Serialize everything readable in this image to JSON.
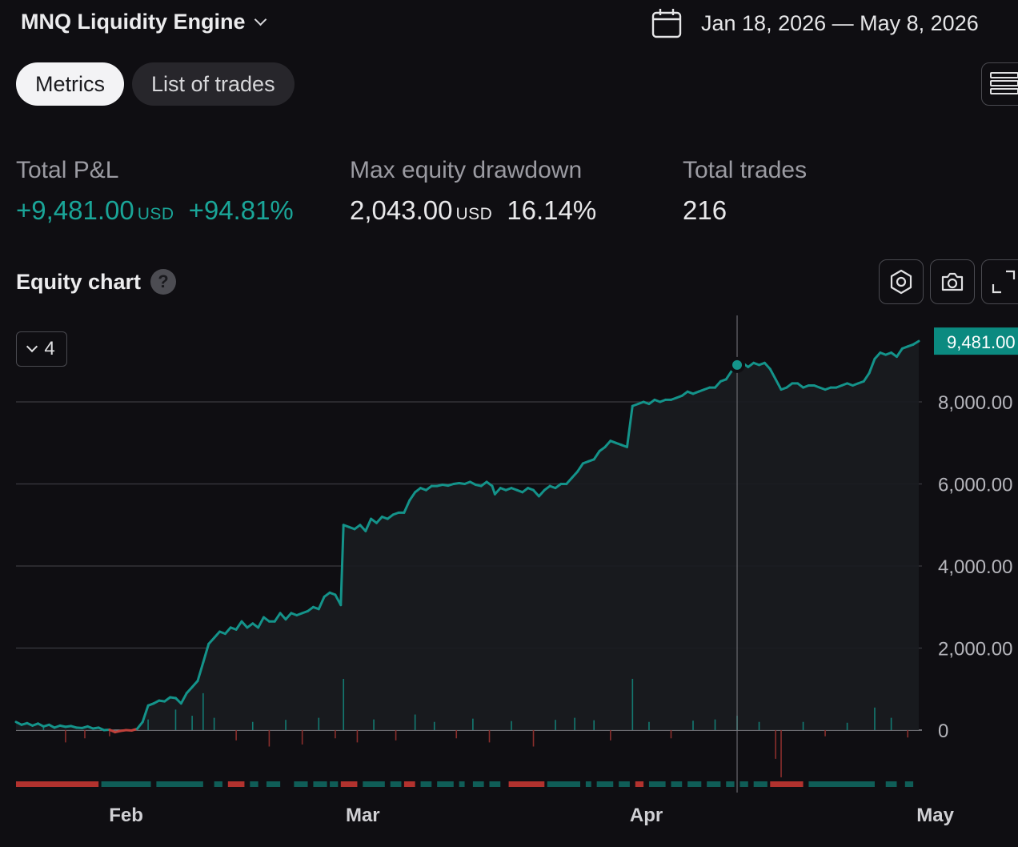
{
  "header": {
    "strategy_name": "MNQ Liquidity Engine",
    "date_range": "Jan 18, 2026 — May 8, 2026"
  },
  "tabs": [
    {
      "label": "Metrics",
      "active": true
    },
    {
      "label": "List of trades",
      "active": false
    }
  ],
  "metrics": {
    "total_pnl": {
      "label": "Total P&L",
      "value": "+9,481.00",
      "unit": "USD",
      "percent": "+94.81%"
    },
    "max_drawdown": {
      "label": "Max equity drawdown",
      "value": "2,043.00",
      "unit": "USD",
      "percent": "16.14%"
    },
    "total_trades": {
      "label": "Total trades",
      "value": "216"
    }
  },
  "equity_section": {
    "title": "Equity chart",
    "help_glyph": "?",
    "collapse_count": "4"
  },
  "colors": {
    "background": "#0f0e12",
    "equity_line": "#14938a",
    "positive": "#1aa598",
    "negative": "#c0413b",
    "label_bg": "#0b8a80"
  },
  "chart_data": {
    "type": "line",
    "x_axis": {
      "ticks": [
        "Feb",
        "Mar",
        "Apr",
        "May"
      ]
    },
    "y_axis": {
      "ticks": [
        "0",
        "2,000.00",
        "4,000.00",
        "6,000.00",
        "8,000.00"
      ],
      "range": [
        -1200,
        10000
      ],
      "side": "right"
    },
    "last_value_label": "9,481.00",
    "grid": true,
    "series": [
      {
        "values": [
          [
            0,
            200
          ],
          [
            2,
            130
          ],
          [
            4,
            170
          ],
          [
            6,
            110
          ],
          [
            8,
            160
          ],
          [
            10,
            90
          ],
          [
            12,
            130
          ],
          [
            14,
            60
          ],
          [
            16,
            110
          ],
          [
            18,
            80
          ],
          [
            20,
            100
          ],
          [
            22,
            60
          ],
          [
            24,
            50
          ],
          [
            26,
            90
          ],
          [
            28,
            40
          ],
          [
            30,
            60
          ],
          [
            32,
            0
          ],
          [
            34,
            10
          ],
          [
            36,
            -50
          ],
          [
            38,
            -20
          ],
          [
            40,
            0
          ],
          [
            42,
            -10
          ],
          [
            44,
            30
          ],
          [
            46,
            200
          ],
          [
            48,
            600
          ],
          [
            50,
            650
          ],
          [
            52,
            720
          ],
          [
            54,
            700
          ],
          [
            56,
            800
          ],
          [
            58,
            780
          ],
          [
            60,
            650
          ],
          [
            62,
            900
          ],
          [
            64,
            1050
          ],
          [
            66,
            1200
          ],
          [
            68,
            1650
          ],
          [
            70,
            2100
          ],
          [
            72,
            2250
          ],
          [
            74,
            2400
          ],
          [
            76,
            2350
          ],
          [
            78,
            2500
          ],
          [
            80,
            2450
          ],
          [
            82,
            2650
          ],
          [
            84,
            2500
          ],
          [
            86,
            2600
          ],
          [
            88,
            2500
          ],
          [
            90,
            2750
          ],
          [
            92,
            2650
          ],
          [
            94,
            2650
          ],
          [
            96,
            2850
          ],
          [
            98,
            2700
          ],
          [
            100,
            2850
          ],
          [
            102,
            2800
          ],
          [
            104,
            2850
          ],
          [
            106,
            2900
          ],
          [
            108,
            3000
          ],
          [
            110,
            2950
          ],
          [
            112,
            3250
          ],
          [
            114,
            3350
          ],
          [
            116,
            3300
          ],
          [
            118,
            3050
          ],
          [
            119,
            5000
          ],
          [
            121,
            4950
          ],
          [
            123,
            4900
          ],
          [
            125,
            5000
          ],
          [
            127,
            4850
          ],
          [
            129,
            5150
          ],
          [
            131,
            5050
          ],
          [
            133,
            5200
          ],
          [
            135,
            5150
          ],
          [
            137,
            5250
          ],
          [
            139,
            5300
          ],
          [
            141,
            5300
          ],
          [
            143,
            5600
          ],
          [
            145,
            5800
          ],
          [
            147,
            5900
          ],
          [
            149,
            5850
          ],
          [
            151,
            5950
          ],
          [
            153,
            5950
          ],
          [
            155,
            5980
          ],
          [
            157,
            5960
          ],
          [
            159,
            6000
          ],
          [
            161,
            6020
          ],
          [
            163,
            6000
          ],
          [
            165,
            6050
          ],
          [
            167,
            5980
          ],
          [
            169,
            5950
          ],
          [
            171,
            6050
          ],
          [
            173,
            5950
          ],
          [
            174,
            5750
          ],
          [
            176,
            5900
          ],
          [
            178,
            5850
          ],
          [
            180,
            5900
          ],
          [
            182,
            5850
          ],
          [
            184,
            5800
          ],
          [
            186,
            5900
          ],
          [
            188,
            5850
          ],
          [
            190,
            5700
          ],
          [
            192,
            5850
          ],
          [
            194,
            5950
          ],
          [
            196,
            5900
          ],
          [
            198,
            6000
          ],
          [
            200,
            6000
          ],
          [
            202,
            6150
          ],
          [
            204,
            6300
          ],
          [
            206,
            6500
          ],
          [
            208,
            6550
          ],
          [
            210,
            6600
          ],
          [
            212,
            6800
          ],
          [
            214,
            6900
          ],
          [
            216,
            7050
          ],
          [
            218,
            7000
          ],
          [
            220,
            6950
          ],
          [
            222,
            6900
          ],
          [
            224,
            7900
          ],
          [
            226,
            7950
          ],
          [
            228,
            8000
          ],
          [
            230,
            7950
          ],
          [
            232,
            8050
          ],
          [
            234,
            8000
          ],
          [
            236,
            8050
          ],
          [
            238,
            8050
          ],
          [
            240,
            8100
          ],
          [
            242,
            8150
          ],
          [
            244,
            8250
          ],
          [
            246,
            8200
          ],
          [
            248,
            8250
          ],
          [
            250,
            8300
          ],
          [
            252,
            8350
          ],
          [
            254,
            8350
          ],
          [
            256,
            8500
          ],
          [
            258,
            8550
          ],
          [
            260,
            8750
          ],
          [
            262,
            8900
          ],
          [
            264,
            8950
          ],
          [
            266,
            8850
          ],
          [
            268,
            8950
          ],
          [
            270,
            8900
          ],
          [
            272,
            8950
          ],
          [
            274,
            8800
          ],
          [
            276,
            8550
          ],
          [
            278,
            8300
          ],
          [
            280,
            8350
          ],
          [
            282,
            8450
          ],
          [
            284,
            8450
          ],
          [
            286,
            8350
          ],
          [
            288,
            8400
          ],
          [
            290,
            8400
          ],
          [
            292,
            8350
          ],
          [
            294,
            8300
          ],
          [
            296,
            8350
          ],
          [
            298,
            8350
          ],
          [
            300,
            8400
          ],
          [
            302,
            8450
          ],
          [
            304,
            8400
          ],
          [
            306,
            8450
          ],
          [
            308,
            8500
          ],
          [
            310,
            8700
          ],
          [
            312,
            9050
          ],
          [
            314,
            9200
          ],
          [
            316,
            9150
          ],
          [
            318,
            9200
          ],
          [
            320,
            9100
          ],
          [
            322,
            9300
          ],
          [
            324,
            9350
          ],
          [
            326,
            9400
          ],
          [
            328,
            9481
          ]
        ]
      }
    ],
    "marker_index": 262,
    "trade_bars": [
      {
        "x": 10,
        "v": 120
      },
      {
        "x": 18,
        "v": -300
      },
      {
        "x": 25,
        "v": -200
      },
      {
        "x": 34,
        "v": -150
      },
      {
        "x": 48,
        "v": 260
      },
      {
        "x": 58,
        "v": 500
      },
      {
        "x": 64,
        "v": 350
      },
      {
        "x": 68,
        "v": 900
      },
      {
        "x": 72,
        "v": 300
      },
      {
        "x": 80,
        "v": -250
      },
      {
        "x": 86,
        "v": 200
      },
      {
        "x": 92,
        "v": -400
      },
      {
        "x": 98,
        "v": 250
      },
      {
        "x": 104,
        "v": -350
      },
      {
        "x": 110,
        "v": 300
      },
      {
        "x": 116,
        "v": -200
      },
      {
        "x": 119,
        "v": 1250
      },
      {
        "x": 124,
        "v": -300
      },
      {
        "x": 130,
        "v": 260
      },
      {
        "x": 138,
        "v": -250
      },
      {
        "x": 145,
        "v": 380
      },
      {
        "x": 152,
        "v": 200
      },
      {
        "x": 160,
        "v": -200
      },
      {
        "x": 166,
        "v": 280
      },
      {
        "x": 172,
        "v": -300
      },
      {
        "x": 180,
        "v": 220
      },
      {
        "x": 188,
        "v": -400
      },
      {
        "x": 196,
        "v": 250
      },
      {
        "x": 203,
        "v": 300
      },
      {
        "x": 210,
        "v": 240
      },
      {
        "x": 216,
        "v": -250
      },
      {
        "x": 224,
        "v": 1250
      },
      {
        "x": 230,
        "v": 200
      },
      {
        "x": 238,
        "v": -200
      },
      {
        "x": 246,
        "v": 230
      },
      {
        "x": 254,
        "v": 260
      },
      {
        "x": 262,
        "v": 350
      },
      {
        "x": 270,
        "v": 200
      },
      {
        "x": 276,
        "v": -700
      },
      {
        "x": 278,
        "v": -1150
      },
      {
        "x": 286,
        "v": 200
      },
      {
        "x": 294,
        "v": -150
      },
      {
        "x": 302,
        "v": 180
      },
      {
        "x": 312,
        "v": 550
      },
      {
        "x": 318,
        "v": 300
      },
      {
        "x": 324,
        "v": -180
      }
    ],
    "trade_strip": [
      {
        "from": 0,
        "to": 30,
        "win": false
      },
      {
        "from": 31,
        "to": 49,
        "win": true
      },
      {
        "from": 51,
        "to": 68,
        "win": true
      },
      {
        "from": 72,
        "to": 75,
        "win": true
      },
      {
        "from": 77,
        "to": 83,
        "win": false
      },
      {
        "from": 85,
        "to": 88,
        "win": true
      },
      {
        "from": 91,
        "to": 96,
        "win": true
      },
      {
        "from": 101,
        "to": 106,
        "win": true
      },
      {
        "from": 108,
        "to": 113,
        "win": true
      },
      {
        "from": 114,
        "to": 117,
        "win": true
      },
      {
        "from": 118,
        "to": 124,
        "win": false
      },
      {
        "from": 126,
        "to": 134,
        "win": true
      },
      {
        "from": 136,
        "to": 140,
        "win": true
      },
      {
        "from": 141,
        "to": 145,
        "win": false
      },
      {
        "from": 147,
        "to": 151,
        "win": true
      },
      {
        "from": 153,
        "to": 159,
        "win": true
      },
      {
        "from": 161,
        "to": 163,
        "win": true
      },
      {
        "from": 166,
        "to": 170,
        "win": true
      },
      {
        "from": 172,
        "to": 176,
        "win": true
      },
      {
        "from": 179,
        "to": 192,
        "win": false
      },
      {
        "from": 193,
        "to": 205,
        "win": true
      },
      {
        "from": 207,
        "to": 209,
        "win": true
      },
      {
        "from": 211,
        "to": 217,
        "win": true
      },
      {
        "from": 219,
        "to": 223,
        "win": true
      },
      {
        "from": 225,
        "to": 228,
        "win": false
      },
      {
        "from": 230,
        "to": 236,
        "win": true
      },
      {
        "from": 238,
        "to": 242,
        "win": true
      },
      {
        "from": 244,
        "to": 249,
        "win": true
      },
      {
        "from": 251,
        "to": 256,
        "win": true
      },
      {
        "from": 258,
        "to": 261,
        "win": true
      },
      {
        "from": 263,
        "to": 266,
        "win": true
      },
      {
        "from": 268,
        "to": 273,
        "win": true
      },
      {
        "from": 274,
        "to": 286,
        "win": false
      },
      {
        "from": 288,
        "to": 312,
        "win": true
      },
      {
        "from": 316,
        "to": 320,
        "win": true
      },
      {
        "from": 323,
        "to": 326,
        "win": true
      }
    ],
    "month_positions": [
      40,
      126,
      229,
      334
    ]
  }
}
